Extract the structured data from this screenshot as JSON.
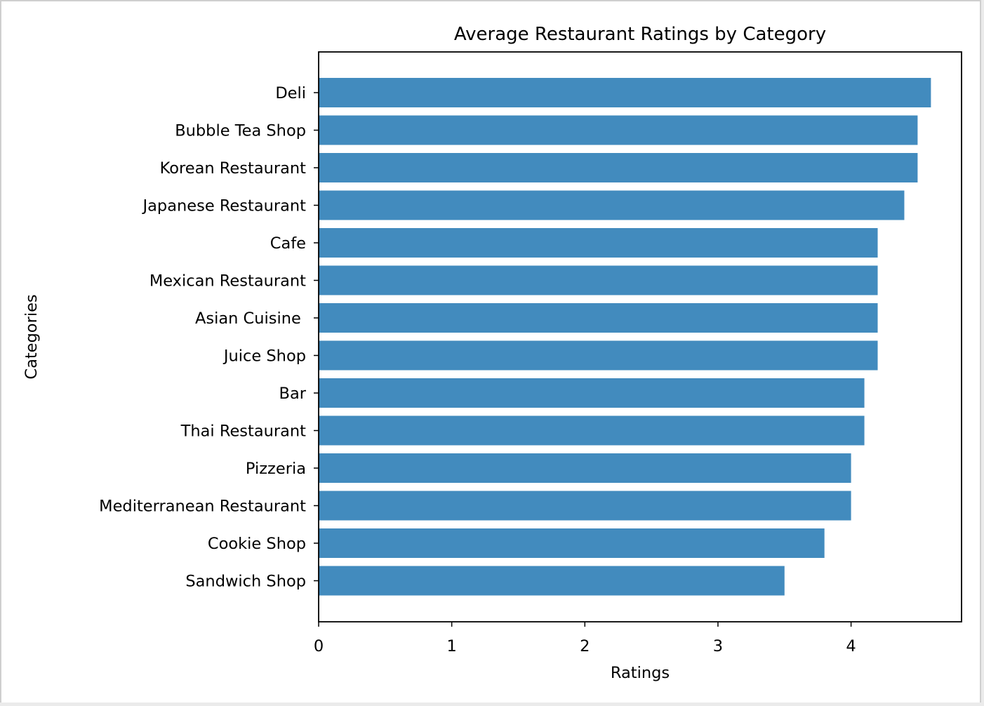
{
  "chart_data": {
    "type": "bar",
    "orientation": "horizontal",
    "title": "Average Restaurant Ratings by Category",
    "xlabel": "Ratings",
    "ylabel": "Categories",
    "categories": [
      "Deli",
      "Bubble Tea Shop",
      "Korean Restaurant",
      "Japanese Restaurant",
      "Cafe",
      "Mexican Restaurant",
      "Asian Cuisine ",
      "Juice Shop",
      "Bar",
      "Thai Restaurant",
      "Pizzeria",
      "Mediterranean Restaurant",
      "Cookie Shop",
      "Sandwich Shop"
    ],
    "values": [
      4.6,
      4.5,
      4.5,
      4.4,
      4.2,
      4.2,
      4.2,
      4.2,
      4.1,
      4.1,
      4.0,
      4.0,
      3.8,
      3.5
    ],
    "x_ticks": [
      "0",
      "1",
      "2",
      "3",
      "4"
    ],
    "xlim": [
      0,
      4.83
    ],
    "grid": false,
    "bar_color": "#428bbe"
  }
}
